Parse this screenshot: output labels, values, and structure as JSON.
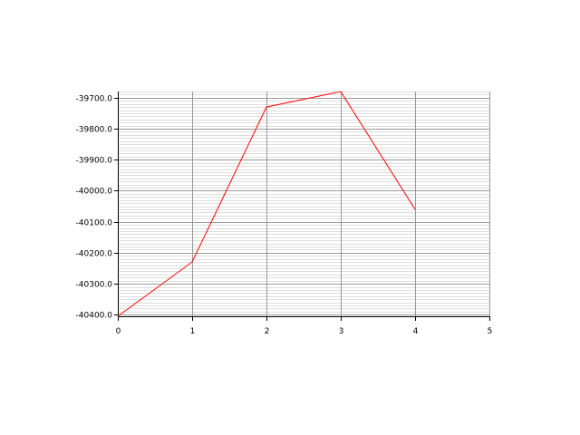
{
  "chart_data": {
    "type": "line",
    "title": "",
    "xlabel": "",
    "ylabel": "",
    "x": [
      0,
      1,
      2,
      3,
      4
    ],
    "series": [
      {
        "name": "",
        "color": "#ff0000",
        "values": [
          -40405,
          -40230,
          -39730,
          -39680,
          -40060
        ]
      }
    ],
    "xlim": [
      0,
      5
    ],
    "ylim": [
      -40405,
      -39680
    ],
    "x_ticks": [
      0,
      1,
      2,
      3,
      4,
      5
    ],
    "x_tick_labels": [
      "0",
      "1",
      "2",
      "3",
      "4",
      "5"
    ],
    "y_ticks": [
      -40400,
      -40300,
      -40200,
      -40100,
      -40000,
      -39900,
      -39800,
      -39700
    ],
    "y_tick_labels": [
      "-40400.0",
      "-40300.0",
      "-40200.0",
      "-40100.0",
      "-40000.0",
      "-39900.0",
      "-39800.0",
      "-39700.0"
    ],
    "y_minor_step": 10,
    "grid": true,
    "legend": "none",
    "colors": {
      "grid_major": "#999999",
      "grid_minor": "#dddddd",
      "axis": "#000000",
      "line": "#ff0000"
    }
  }
}
